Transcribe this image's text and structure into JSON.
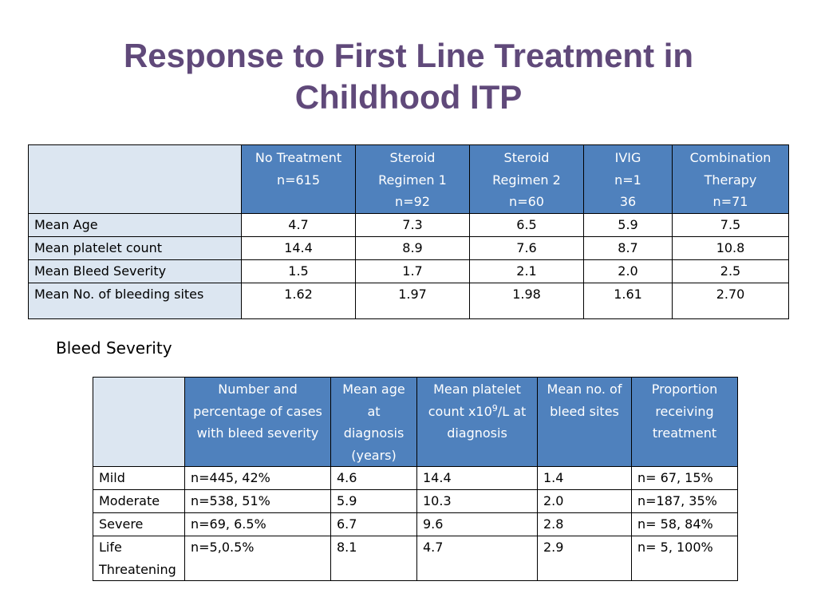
{
  "slide": {
    "title_line1": "Response to First Line Treatment in",
    "title_line2": "Childhood ITP",
    "subheading": "Bleed Severity"
  },
  "table1": {
    "headers": [
      {
        "line1": "No Treatment",
        "line2": "n=615",
        "line3": ""
      },
      {
        "line1": "Steroid",
        "line2": "Regimen 1",
        "line3": "n=92"
      },
      {
        "line1": "Steroid",
        "line2": "Regimen 2",
        "line3": "n=60"
      },
      {
        "line1": "IVIG",
        "line2": "n=1",
        "line3": "36"
      },
      {
        "line1": "Combination",
        "line2": "Therapy",
        "line3": "n=71"
      }
    ],
    "rows": [
      {
        "label": "Mean Age",
        "values": [
          "4.7",
          "7.3",
          "6.5",
          "5.9",
          "7.5"
        ]
      },
      {
        "label": "Mean platelet count",
        "values": [
          "14.4",
          "8.9",
          "7.6",
          "8.7",
          "10.8"
        ]
      },
      {
        "label": "Mean Bleed Severity",
        "values": [
          "1.5",
          "1.7",
          "2.1",
          "2.0",
          "2.5"
        ]
      },
      {
        "label": "Mean No. of bleeding sites",
        "values": [
          "1.62",
          "1.97",
          "1.98",
          "1.61",
          "2.70"
        ]
      }
    ]
  },
  "table2": {
    "headers": [
      {
        "line1": "Number and",
        "line2": "percentage of cases",
        "line3": "with bleed severity",
        "line4": ""
      },
      {
        "line1": "Mean age",
        "line2": "at",
        "line3": "diagnosis",
        "line4": "(years)"
      },
      {
        "line1": "Mean platelet",
        "line2a": "count x10",
        "line2sup": "9",
        "line2b": "/L at",
        "line3": "diagnosis",
        "line4": ""
      },
      {
        "line1": "Mean no. of",
        "line2": "bleed sites",
        "line3": "",
        "line4": ""
      },
      {
        "line1": "Proportion",
        "line2": "receiving",
        "line3": "treatment",
        "line4": ""
      }
    ],
    "rows": [
      {
        "label1": "Mild",
        "label2": "",
        "values": [
          "n=445, 42%",
          "4.6",
          "14.4",
          "1.4",
          "n= 67, 15%"
        ]
      },
      {
        "label1": "Moderate",
        "label2": "",
        "values": [
          "n=538, 51%",
          "5.9",
          "10.3",
          "2.0",
          "n=187, 35%"
        ]
      },
      {
        "label1": "Severe",
        "label2": "",
        "values": [
          "n=69, 6.5%",
          "6.7",
          "9.6",
          "2.8",
          "n= 58, 84%"
        ]
      },
      {
        "label1": "Life",
        "label2": "Threatening",
        "values": [
          "n=5,0.5%",
          "8.1",
          "4.7",
          "2.9",
          "n= 5, 100%"
        ]
      }
    ]
  }
}
